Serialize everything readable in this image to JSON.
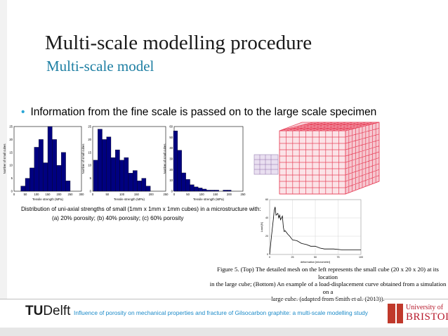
{
  "slide": {
    "title": "Multi-scale modelling procedure",
    "subtitle": "Multi-scale model",
    "bullet": "Information from the fine scale is passed on to the large scale specimen"
  },
  "histograms": {
    "xlabel": "Tensile strength (MPa)",
    "ylabel": "Number of small cubes",
    "caption_line1": "Distribution of uni-axial strengths of small (1mm x 1mm x 1mm cubes) in a microstructure with:",
    "caption_line2": "(a) 20% porosity; (b) 40% porosity; (c) 60% porosity",
    "bar_color": "#000080"
  },
  "chart_data": [
    {
      "type": "bar",
      "xlabel": "Tensile strength (MPa)",
      "ylabel": "Number of small cubes",
      "xlim": [
        0,
        300
      ],
      "ylim": [
        0,
        25
      ],
      "xticks": [
        "0",
        "50",
        "100",
        "150",
        "200",
        "250",
        "300"
      ],
      "yticks": [
        "0",
        "5",
        "10",
        "15",
        "20",
        "25"
      ],
      "bins": [
        40,
        60,
        80,
        100,
        120,
        140,
        160,
        180,
        200,
        220,
        240
      ],
      "values": [
        2,
        5,
        9,
        17,
        20,
        11,
        25,
        20,
        10,
        15,
        4
      ]
    },
    {
      "type": "bar",
      "xlabel": "Tensile strength (MPa)",
      "ylabel": "Number of small cubes",
      "xlim": [
        0,
        250
      ],
      "ylim": [
        0,
        25
      ],
      "xticks": [
        "0",
        "50",
        "100",
        "150",
        "200",
        "250"
      ],
      "yticks": [
        "0",
        "5",
        "10",
        "15",
        "20",
        "25"
      ],
      "bins": [
        10,
        25,
        40,
        55,
        70,
        85,
        100,
        115,
        130,
        145,
        160,
        175,
        190
      ],
      "values": [
        12,
        24,
        20,
        21,
        13,
        16,
        12,
        13,
        7,
        8,
        4,
        5,
        2
      ]
    },
    {
      "type": "bar",
      "xlabel": "Tensile strength (MPa)",
      "ylabel": "Number of small cubes",
      "xlim": [
        0,
        250
      ],
      "ylim": [
        0,
        60
      ],
      "xticks": [
        "0",
        "50",
        "100",
        "150",
        "200",
        "250"
      ],
      "yticks": [
        "0",
        "10",
        "20",
        "30",
        "40",
        "50",
        "60"
      ],
      "bins": [
        5,
        20,
        35,
        50,
        65,
        80,
        95,
        110,
        125,
        140,
        155,
        170,
        185,
        200
      ],
      "values": [
        56,
        38,
        17,
        11,
        6,
        4,
        3,
        2,
        1,
        1,
        1,
        0,
        1,
        1
      ]
    },
    {
      "type": "line",
      "xlabel": "deformation [micrometer]",
      "ylabel": "Load [N]",
      "xlim": [
        0,
        100
      ],
      "ylim": [
        0,
        60
      ],
      "xticks": [
        "0",
        "25",
        "50",
        "75",
        "100"
      ],
      "yticks": [
        "0",
        "20",
        "40",
        "60"
      ],
      "x": [
        0,
        2,
        4,
        5,
        6,
        7,
        9,
        10,
        11,
        12,
        14,
        15,
        16,
        17,
        20,
        22,
        25,
        30,
        35,
        40,
        45,
        50,
        55,
        60,
        70,
        80,
        90,
        100
      ],
      "y": [
        0,
        20,
        38,
        48,
        52,
        43,
        45,
        40,
        43,
        38,
        42,
        30,
        25,
        26,
        22,
        20,
        16,
        15,
        12,
        11,
        9,
        9,
        7,
        6,
        6,
        5,
        5,
        5
      ]
    }
  ],
  "figure5": {
    "caption": "Figure 5. (Top) The detailed mesh on the left represents the small cube (20 x 20 x 20) at its location\nin the large cube; (Bottom) An example of a load-displacement curve obtained from a simulation on a\nlarge cube. (adapted from Smith et al. (2013))."
  },
  "footer": {
    "logo_tu": "TU",
    "logo_delft": "Delft",
    "text": "Influence of porosity on mechanical properties and fracture of Gilsocarbon graphite: a multi-scale modelling study",
    "uni_line1": "University of",
    "uni_line2": "BRISTOL"
  }
}
